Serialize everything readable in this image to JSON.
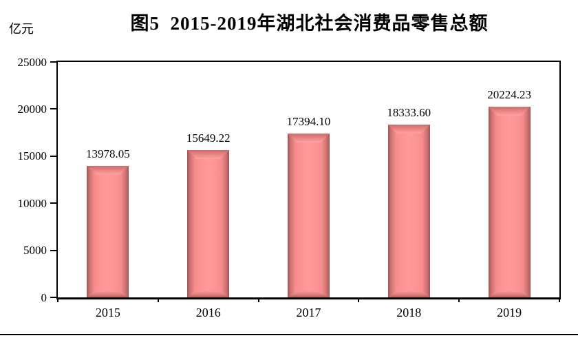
{
  "figure": {
    "title": "图5  2015-2019年湖北社会消费品零售总额",
    "unit_label": "亿元"
  },
  "chart_data": {
    "type": "bar",
    "title": "图5  2015-2019年湖北社会消费品零售总额",
    "categories": [
      "2015",
      "2016",
      "2017",
      "2018",
      "2019"
    ],
    "values": [
      13978.05,
      15649.22,
      17394.1,
      18333.6,
      20224.23
    ],
    "value_labels": [
      "13978.05",
      "15649.22",
      "17394.10",
      "18333.60",
      "20224.23"
    ],
    "xlabel": "",
    "ylabel": "亿元",
    "ylim": [
      0,
      25000
    ],
    "yticks": [
      0,
      5000,
      10000,
      15000,
      20000,
      25000
    ],
    "grid": false,
    "legend": "none",
    "colors": {
      "bar_fill": "#FD9494",
      "bar_edge_dark": "#9D5656",
      "bar_bevel_light": "#FFA2A2",
      "axis": "#000000",
      "background": "#FFFFFF",
      "text": "#000000"
    }
  }
}
